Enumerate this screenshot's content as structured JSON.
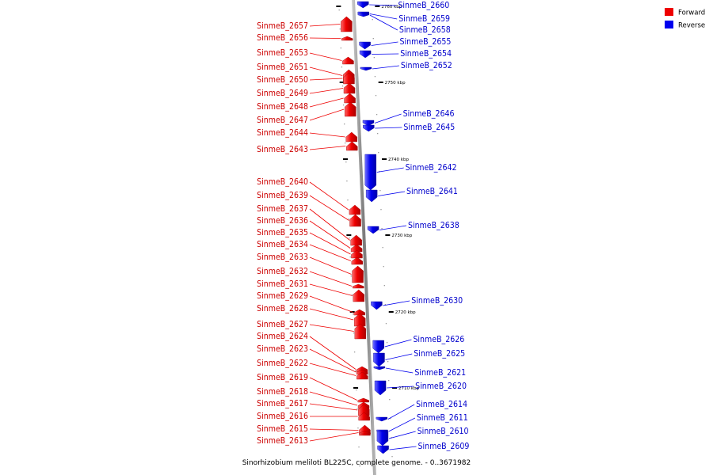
{
  "caption": "Sinorhizobium meliloti BL225C, complete genome. - 0..3671982",
  "legend": [
    {
      "label": "Forward",
      "color": "#ee0000"
    },
    {
      "label": "Reverse",
      "color": "#0000ee"
    }
  ],
  "ticks": [
    "2760 kbp",
    "2750 kbp",
    "2740 kbp",
    "2730 kbp",
    "2720 kbp",
    "2710 kbp"
  ],
  "forward_genes": [
    "SinmeB_2657",
    "SinmeB_2656",
    "SinmeB_2653",
    "SinmeB_2651",
    "SinmeB_2650",
    "SinmeB_2649",
    "SinmeB_2648",
    "SinmeB_2647",
    "SinmeB_2644",
    "SinmeB_2643",
    "SinmeB_2640",
    "SinmeB_2639",
    "SinmeB_2637",
    "SinmeB_2636",
    "SinmeB_2635",
    "SinmeB_2634",
    "SinmeB_2633",
    "SinmeB_2632",
    "SinmeB_2631",
    "SinmeB_2629",
    "SinmeB_2628",
    "SinmeB_2627",
    "SinmeB_2624",
    "SinmeB_2623",
    "SinmeB_2622",
    "SinmeB_2619",
    "SinmeB_2618",
    "SinmeB_2617",
    "SinmeB_2616",
    "SinmeB_2615",
    "SinmeB_2613"
  ],
  "reverse_genes": [
    "SinmeB_2660",
    "SinmeB_2659",
    "SinmeB_2658",
    "SinmeB_2655",
    "SinmeB_2654",
    "SinmeB_2652",
    "SinmeB_2646",
    "SinmeB_2645",
    "SinmeB_2642",
    "SinmeB_2641",
    "SinmeB_2638",
    "SinmeB_2630",
    "SinmeB_2626",
    "SinmeB_2625",
    "SinmeB_2621",
    "SinmeB_2620",
    "SinmeB_2614",
    "SinmeB_2611",
    "SinmeB_2610",
    "SinmeB_2609"
  ]
}
